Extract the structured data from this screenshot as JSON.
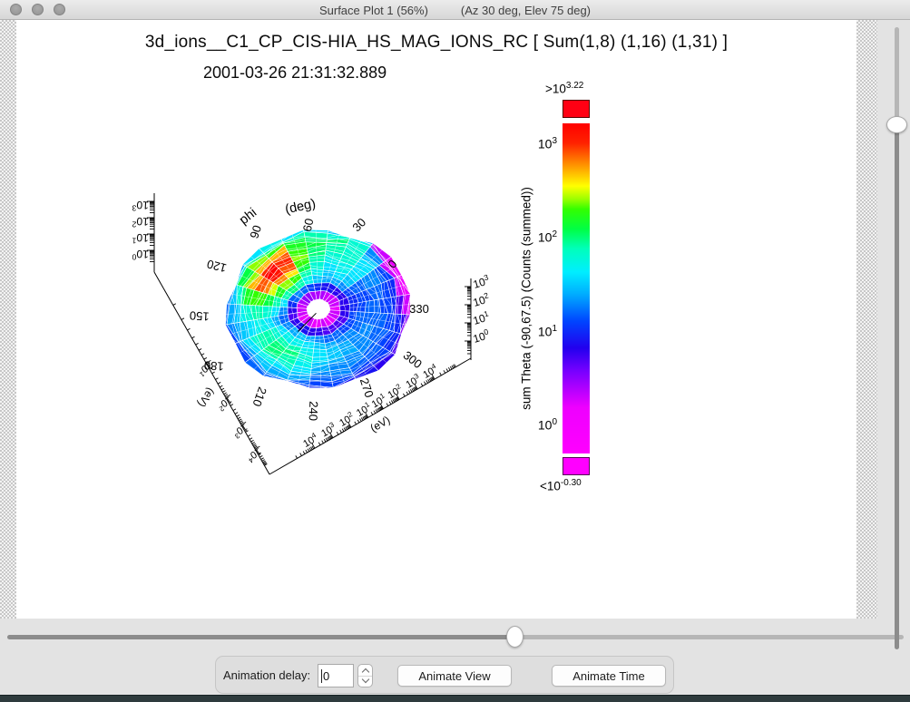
{
  "window": {
    "title": "Surface Plot 1 (56%)",
    "view_info": "(Az 30 deg, Elev 75 deg)"
  },
  "controls": {
    "delay_label": "Animation delay:",
    "delay_value": "0",
    "animate_view_label": "Animate View",
    "animate_time_label": "Animate Time"
  },
  "chart_data": {
    "type": "3d_polar_surface",
    "title": "3d_ions__C1_CP_CIS-HIA_HS_MAG_IONS_RC [ Sum(1,8) (1,16) (1,31) ]",
    "timestamp": "2001-03-26 21:31:32.889",
    "view": {
      "azimuth_deg": 30,
      "elevation_deg": 75,
      "zoom_percent": 56
    },
    "phi_axis": {
      "title": "phi (deg)",
      "tick_labels": [
        "0",
        "30",
        "60",
        "90",
        "120",
        "150",
        "180",
        "210",
        "240",
        "270",
        "300",
        "330"
      ]
    },
    "energy_axis": {
      "title": "(eV)",
      "left_ticks": [
        [
          "10",
          "1"
        ],
        [
          "10",
          "2"
        ],
        [
          "10",
          "3"
        ],
        [
          "10",
          "4"
        ]
      ],
      "bottom_ticks": [
        [
          "10",
          "4"
        ],
        [
          "10",
          "3"
        ],
        [
          "10",
          "2"
        ],
        [
          "10",
          "1"
        ],
        [
          "10",
          "1"
        ],
        [
          "10",
          "2"
        ],
        [
          "10",
          "3"
        ],
        [
          "10",
          "4"
        ]
      ]
    },
    "z_axis": {
      "tick_labels": [
        [
          "10",
          "3"
        ],
        [
          "10",
          "2"
        ],
        [
          "10",
          "1"
        ],
        [
          "10",
          "0"
        ]
      ]
    },
    "colorbar": {
      "label": "sum Theta (-90,67.5) (Counts (summed))",
      "over_base": ">10",
      "over_exp": "3.22",
      "under_base": "<10",
      "under_exp": "-0.30",
      "tick_labels": [
        [
          "10",
          "3"
        ],
        [
          "10",
          "2"
        ],
        [
          "10",
          "1"
        ],
        [
          "10",
          "0"
        ]
      ],
      "range_log10": [
        -0.3,
        3.22
      ],
      "gradient": [
        "#ff0000",
        "#ff2200",
        "#ff8800",
        "#ffff00",
        "#99ff00",
        "#33ff00",
        "#00ff44",
        "#00ffbb",
        "#00eeff",
        "#00aaff",
        "#0044ff",
        "#2200ee",
        "#7700ff",
        "#ee00ff",
        "#ff00ff"
      ]
    },
    "phi_sector_deg": 15,
    "values_log10_counts": [
      [
        0.3,
        0.8,
        1.1,
        1.2,
        1.2,
        1.3,
        1.3,
        1.2,
        1.1,
        0.3,
        0.1,
        0.2
      ],
      [
        0.3,
        0.8,
        1.3,
        1.5,
        1.6,
        1.6,
        1.6,
        1.6,
        1.5,
        1.3,
        0.4,
        0.3
      ],
      [
        0.3,
        0.9,
        1.4,
        1.6,
        1.7,
        1.7,
        1.8,
        1.8,
        1.8,
        1.8,
        1.7,
        1.4
      ],
      [
        0.4,
        0.9,
        1.4,
        1.5,
        1.6,
        1.7,
        1.8,
        1.9,
        1.9,
        2.0,
        1.8,
        1.5
      ],
      [
        0.4,
        1.0,
        1.5,
        1.7,
        1.8,
        1.9,
        2.0,
        2.0,
        2.1,
        2.0,
        1.9,
        1.6
      ],
      [
        0.4,
        1.1,
        1.7,
        1.9,
        2.1,
        2.3,
        2.4,
        2.3,
        2.2,
        2.1,
        1.9,
        1.6
      ],
      [
        0.5,
        1.2,
        1.9,
        2.3,
        2.6,
        2.9,
        3.0,
        2.9,
        2.7,
        2.3,
        2.0,
        1.7
      ],
      [
        0.5,
        1.3,
        2.0,
        2.4,
        2.8,
        3.1,
        3.2,
        3.0,
        2.7,
        2.4,
        2.0,
        1.6
      ],
      [
        0.4,
        1.2,
        1.9,
        2.2,
        2.5,
        2.8,
        2.9,
        2.7,
        2.4,
        2.1,
        1.8,
        1.4
      ],
      [
        0.3,
        1.0,
        1.6,
        1.9,
        2.1,
        2.3,
        2.3,
        2.2,
        2.0,
        1.8,
        1.5,
        1.3
      ],
      [
        0.3,
        0.8,
        1.3,
        1.6,
        1.8,
        1.9,
        1.9,
        1.8,
        1.7,
        1.5,
        1.4,
        1.2
      ],
      [
        0.3,
        0.7,
        1.2,
        1.4,
        1.6,
        1.7,
        1.7,
        1.6,
        1.5,
        1.4,
        1.3,
        1.1
      ],
      [
        0.2,
        0.8,
        1.3,
        1.6,
        1.8,
        1.9,
        1.9,
        1.8,
        1.6,
        1.4,
        1.3,
        1.1
      ],
      [
        0.3,
        0.9,
        1.4,
        1.7,
        1.9,
        2.0,
        2.0,
        1.9,
        1.7,
        1.5,
        1.3,
        1.2
      ],
      [
        0.3,
        0.9,
        1.5,
        1.7,
        1.9,
        2.0,
        1.9,
        1.8,
        1.6,
        1.4,
        1.3,
        1.2
      ],
      [
        0.2,
        0.8,
        1.4,
        1.6,
        1.7,
        1.8,
        1.7,
        1.6,
        1.5,
        1.4,
        1.2,
        1.1
      ],
      [
        0.2,
        0.8,
        1.3,
        1.5,
        1.6,
        1.6,
        1.5,
        1.4,
        1.3,
        1.2,
        1.1,
        1.0
      ],
      [
        0.3,
        0.7,
        1.2,
        1.4,
        1.5,
        1.5,
        1.4,
        1.3,
        1.3,
        1.2,
        1.1,
        0.9
      ],
      [
        0.2,
        0.7,
        1.2,
        1.3,
        1.4,
        1.4,
        1.3,
        1.3,
        1.2,
        1.1,
        1.0,
        0.9
      ],
      [
        0.2,
        0.7,
        1.1,
        1.3,
        1.3,
        1.3,
        1.3,
        1.2,
        1.2,
        1.1,
        1.0,
        0.8
      ],
      [
        0.3,
        0.7,
        1.1,
        1.2,
        1.3,
        1.3,
        1.2,
        1.2,
        1.1,
        1.0,
        0.9,
        0.7
      ],
      [
        0.3,
        0.8,
        1.1,
        1.2,
        1.2,
        1.2,
        1.2,
        1.1,
        1.1,
        1.0,
        0.8,
        0.5
      ],
      [
        0.2,
        0.8,
        1.0,
        1.1,
        1.2,
        1.2,
        1.1,
        1.1,
        1.0,
        0.7,
        0.3,
        0.2
      ],
      [
        0.3,
        0.8,
        1.0,
        1.1,
        1.1,
        1.2,
        1.2,
        1.1,
        1.0,
        0.3,
        0.1,
        0.1
      ]
    ]
  }
}
